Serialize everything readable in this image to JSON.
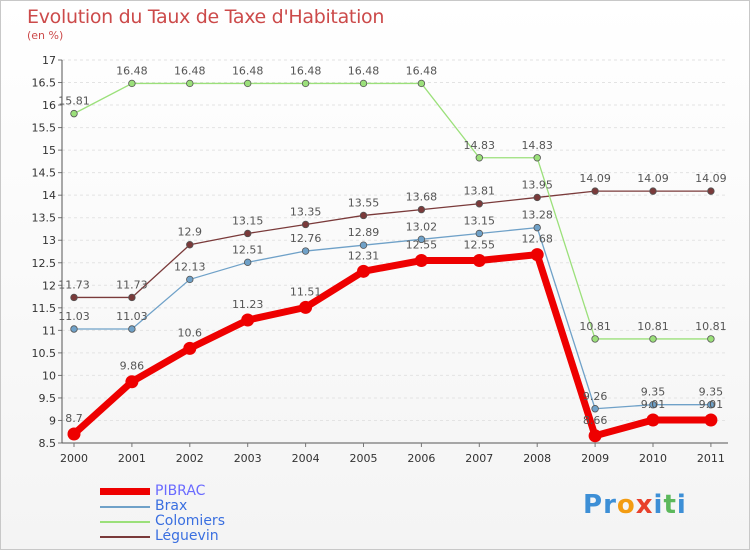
{
  "title": "Evolution du Taux de Taxe d'Habitation",
  "subtitle": "(en %)",
  "logo": {
    "letters": [
      "P",
      "r",
      "o",
      "x",
      "i",
      "t",
      "i"
    ],
    "colors": [
      "#3d8fd6",
      "#3d8fd6",
      "#f39c12",
      "#e8412c",
      "#3d8fd6",
      "#5cb85c",
      "#3d8fd6"
    ]
  },
  "chart_data": {
    "type": "line",
    "title": "Evolution du Taux de Taxe d'Habitation",
    "subtitle": "(en %)",
    "xlabel": "",
    "ylabel": "",
    "x": [
      "2000",
      "2001",
      "2002",
      "2003",
      "2004",
      "2005",
      "2006",
      "2007",
      "2008",
      "2009",
      "2010",
      "2011"
    ],
    "ylim": [
      8.5,
      17
    ],
    "yticks": [
      "8.5",
      "9",
      "9.5",
      "10",
      "10.5",
      "11",
      "11.5",
      "12",
      "12.5",
      "13",
      "13.5",
      "14",
      "14.5",
      "15",
      "15.5",
      "16",
      "16.5",
      "17"
    ],
    "grid": "horizontal dashed",
    "legend_position": "bottom-left",
    "series": [
      {
        "name": "PIBRAC",
        "color": "#ee0000",
        "width": 7,
        "values": [
          8.7,
          9.86,
          10.6,
          11.23,
          11.51,
          12.31,
          12.55,
          12.55,
          12.68,
          8.66,
          9.01,
          9.01
        ],
        "labels": [
          "8.7",
          "9.86",
          "10.6",
          "11.23",
          "11.51",
          "12.31",
          "12.55",
          "12.55",
          "12.68",
          "8.66",
          "9.01",
          "9.01"
        ]
      },
      {
        "name": "Brax",
        "color": "#6fa1c8",
        "width": 1.3,
        "values": [
          11.03,
          11.03,
          12.13,
          12.51,
          12.76,
          12.89,
          13.02,
          13.15,
          13.28,
          9.26,
          9.35,
          9.35
        ],
        "labels": [
          "11.03",
          "11.03",
          "12.13",
          "12.51",
          "12.76",
          "12.89",
          "13.02",
          "13.15",
          "13.28",
          "9.26",
          "9.35",
          "9.35"
        ]
      },
      {
        "name": "Colomiers",
        "color": "#9be07a",
        "width": 1.3,
        "values": [
          15.81,
          16.48,
          16.48,
          16.48,
          16.48,
          16.48,
          16.48,
          14.83,
          14.83,
          10.81,
          10.81,
          10.81
        ],
        "labels": [
          "15.81",
          "16.48",
          "16.48",
          "16.48",
          "16.48",
          "16.48",
          "16.48",
          "14.83",
          "14.83",
          "10.81",
          "10.81",
          "10.81"
        ]
      },
      {
        "name": "Léguevin",
        "color": "#7a3a3a",
        "width": 1.3,
        "values": [
          11.73,
          11.73,
          12.9,
          13.15,
          13.35,
          13.55,
          13.68,
          13.81,
          13.95,
          14.09,
          14.09,
          14.09
        ],
        "labels": [
          "11.73",
          "11.73",
          "12.9",
          "13.15",
          "13.35",
          "13.55",
          "13.68",
          "13.81",
          "13.95",
          "14.09",
          "14.09",
          "14.09"
        ]
      }
    ]
  }
}
